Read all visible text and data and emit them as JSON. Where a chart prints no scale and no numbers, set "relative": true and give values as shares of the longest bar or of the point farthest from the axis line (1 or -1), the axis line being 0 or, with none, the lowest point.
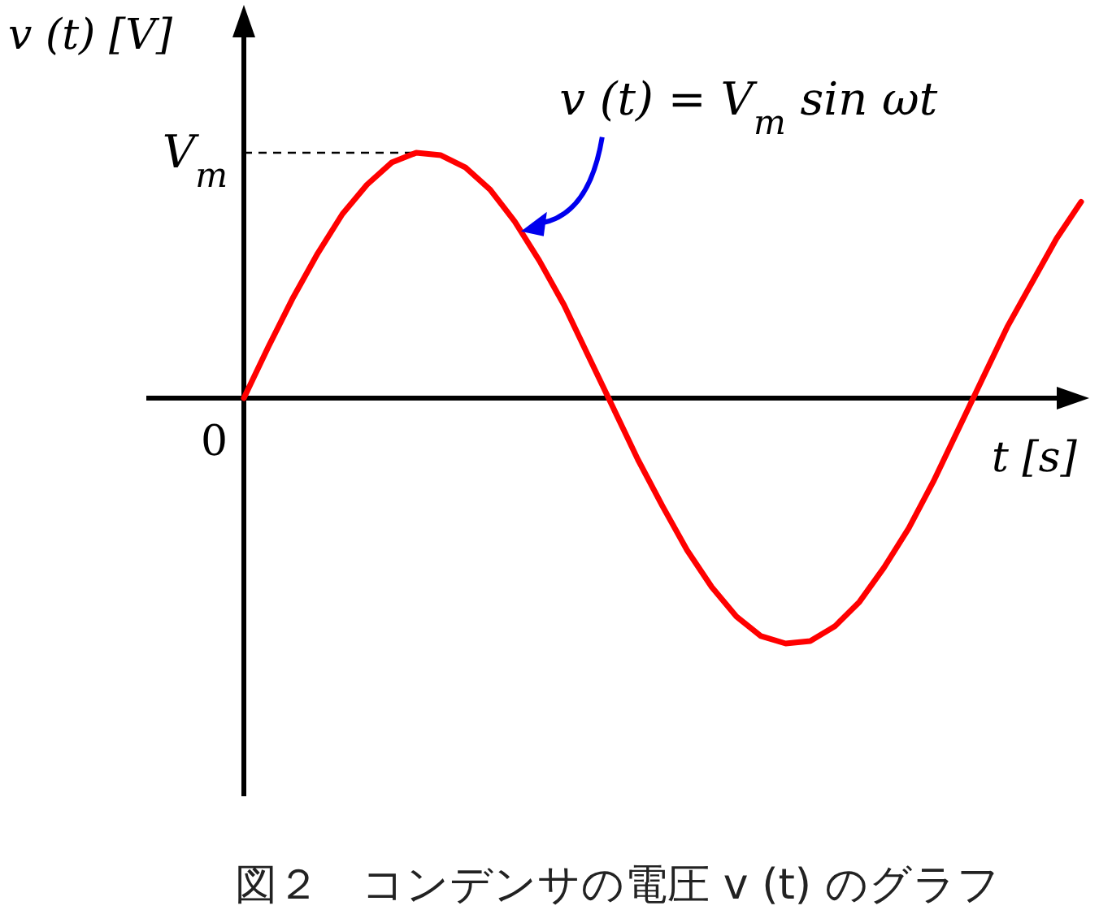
{
  "chart_data": {
    "type": "line",
    "relative": true,
    "categories": [
      null,
      null,
      null,
      null,
      null,
      null,
      null,
      null,
      null,
      null,
      null,
      null,
      null,
      null,
      null,
      null,
      null,
      null,
      null,
      null,
      null,
      null,
      null,
      null,
      null,
      null,
      null,
      null,
      null,
      null,
      null,
      null,
      null,
      null,
      null
    ],
    "series": [
      {
        "color": "#ff0000",
        "values": [
          0,
          0.21,
          0.41,
          0.59,
          0.75,
          0.87,
          0.96,
          1.0,
          0.99,
          0.94,
          0.85,
          0.72,
          0.56,
          0.38,
          0.17,
          -0.04,
          -0.25,
          -0.44,
          -0.62,
          -0.77,
          -0.89,
          -0.97,
          -1.0,
          -0.99,
          -0.93,
          -0.83,
          -0.69,
          -0.53,
          -0.34,
          -0.13,
          0.08,
          0.29,
          0.47,
          0.65,
          0.8
        ]
      }
    ],
    "xlabel": "t [s]",
    "ylabel": "v (t) [V]",
    "ref_lines": [
      {
        "axis": "y",
        "value": 1,
        "label": "V$_{m}$",
        "line_style": "dashed"
      }
    ],
    "annotations": [
      "v (t) = V$_{m}$ sin ωt",
      "0",
      "図２　コンデンサの電圧 v (t) のグラフ"
    ]
  }
}
